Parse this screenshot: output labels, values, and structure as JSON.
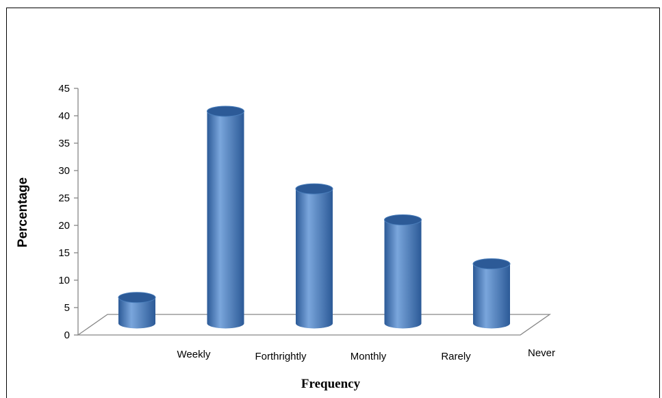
{
  "chart_data": {
    "type": "bar",
    "style": "3d-cylinder",
    "title": "",
    "xlabel": "Frequency",
    "ylabel": "Percentage",
    "ylim": [
      0,
      45
    ],
    "yticks": [
      "0",
      "5",
      "10",
      "15",
      "20",
      "25",
      "30",
      "35",
      "40",
      "45"
    ],
    "category_labels": [
      "Weekly",
      "Forthrightly",
      "Monthly",
      "Rarely",
      "Never"
    ],
    "values": [
      5,
      41,
      26,
      20,
      11.5
    ],
    "grid": false,
    "legend": "none",
    "colors": {
      "bar": "#4a7ebb",
      "bar_dark": "#2c5a97",
      "bar_light": "#7aa6dc",
      "axis": "#868686"
    }
  }
}
